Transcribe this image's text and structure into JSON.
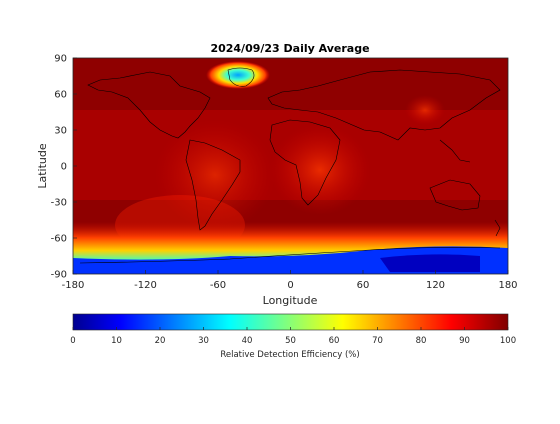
{
  "map": {
    "title": "2024/09/23 Daily Average",
    "xlabel": "Longitude",
    "ylabel": "Latitude",
    "x_ticks": [
      "-180",
      "-120",
      "-60",
      "0",
      "60",
      "120",
      "180"
    ],
    "y_ticks": [
      "90",
      "60",
      "30",
      "0",
      "-30",
      "-60",
      "-90"
    ],
    "xlim": [
      -180,
      180
    ],
    "ylim": [
      -90,
      90
    ],
    "projection": "equirectangular",
    "colormap": "jet"
  },
  "colorbar": {
    "label": "Relative Detection Efficiency (%)",
    "ticks": [
      "0",
      "10",
      "20",
      "30",
      "40",
      "50",
      "60",
      "70",
      "80",
      "90",
      "100"
    ],
    "range": [
      0,
      100
    ]
  },
  "colors": {
    "jet_stops": [
      "#00008f",
      "#0000ff",
      "#00ffff",
      "#ffff00",
      "#ff0000",
      "#800000"
    ],
    "background_field": "#8f0000",
    "coastline": "#000000"
  }
}
